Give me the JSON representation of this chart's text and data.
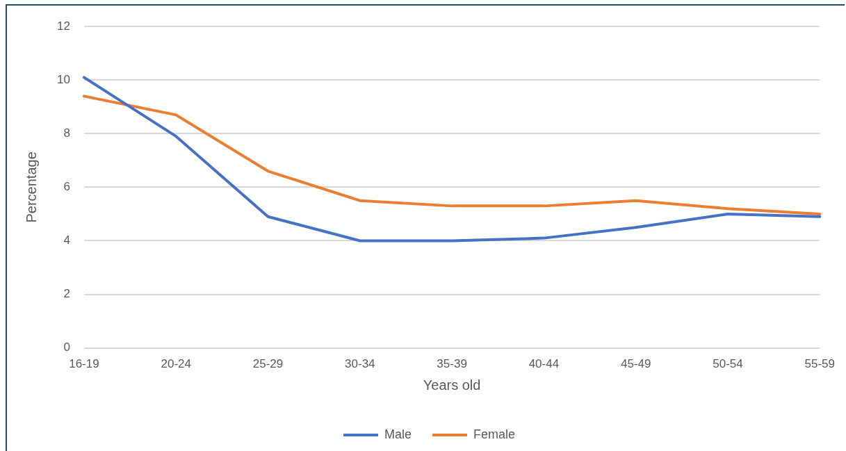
{
  "chart_data": {
    "type": "line",
    "xlabel": "Years old",
    "ylabel": "Percentage",
    "categories": [
      "16-19",
      "20-24",
      "25-29",
      "30-34",
      "35-39",
      "40-44",
      "45-49",
      "50-54",
      "55-59"
    ],
    "series": [
      {
        "name": "Male",
        "color": "#4472c4",
        "values": [
          10.1,
          7.9,
          4.9,
          4.0,
          4.0,
          4.1,
          4.5,
          5.0,
          4.9
        ]
      },
      {
        "name": "Female",
        "color": "#ed7d31",
        "values": [
          9.4,
          8.7,
          6.6,
          5.5,
          5.3,
          5.3,
          5.5,
          5.2,
          5.0
        ]
      }
    ],
    "ylim": [
      0,
      12
    ],
    "yticks": [
      0,
      2,
      4,
      6,
      8,
      10,
      12
    ],
    "grid": "y",
    "legend": "bottom",
    "marker": "none",
    "line_style": "solid"
  }
}
